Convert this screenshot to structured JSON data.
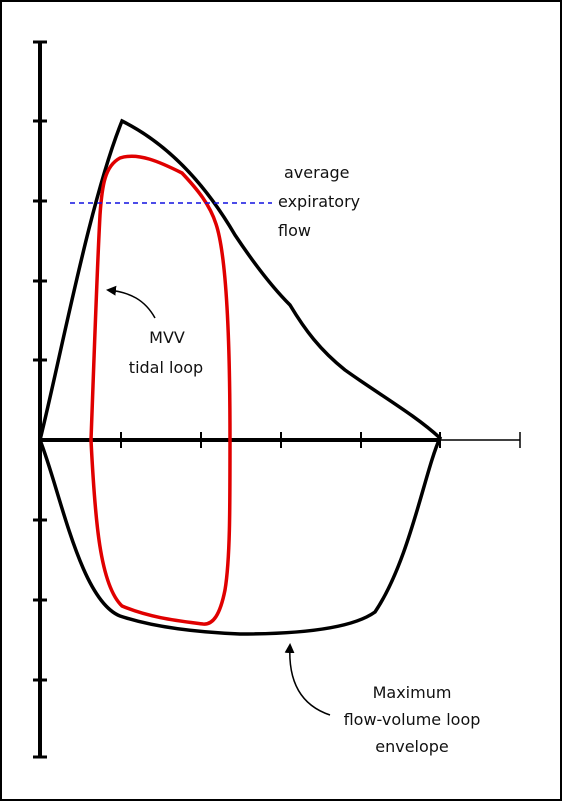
{
  "annotations": [
    {
      "lines": [
        "average",
        "expiratory",
        "flow"
      ]
    },
    {
      "lines": [
        "MVV",
        "tidal loop"
      ]
    },
    {
      "lines": [
        "Maximum",
        "flow-volume loop",
        "envelope"
      ]
    }
  ]
}
